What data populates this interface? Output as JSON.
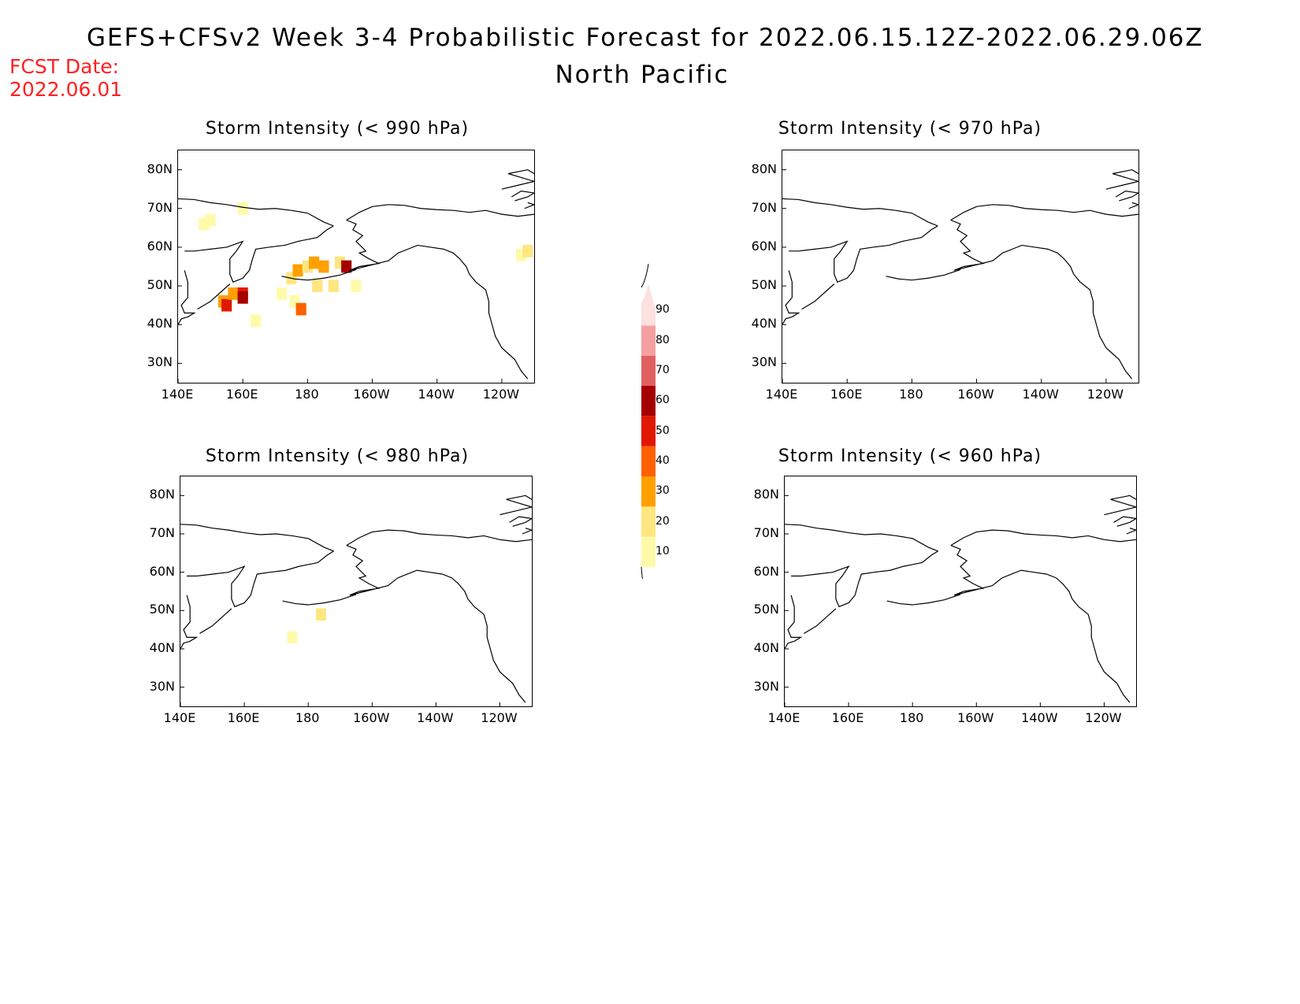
{
  "header": {
    "title": "GEFS+CFSv2 Week 3-4 Probabilistic Forecast for 2022.06.15.12Z-2022.06.29.06Z",
    "subtitle": "North Pacific",
    "fcst_label": "FCST Date:",
    "fcst_date": "2022.06.01"
  },
  "panels": [
    {
      "title": "Storm Intensity (< 990 hPa)"
    },
    {
      "title": "Storm Intensity (< 970 hPa)"
    },
    {
      "title": "Storm Intensity (< 980 hPa)"
    },
    {
      "title": "Storm Intensity (< 960 hPa)"
    }
  ],
  "axes": {
    "lat_ticks": [
      "80N",
      "70N",
      "60N",
      "50N",
      "40N",
      "30N"
    ],
    "lon_ticks": [
      "140E",
      "160E",
      "180",
      "160W",
      "140W",
      "120W"
    ],
    "lat_range": [
      25,
      85
    ],
    "lon_range": [
      140,
      250
    ]
  },
  "colorbar": {
    "levels": [
      "10",
      "20",
      "30",
      "40",
      "50",
      "60",
      "70",
      "80",
      "90"
    ],
    "colors": [
      "#fffaaa",
      "#ffe680",
      "#ffa000",
      "#ff6000",
      "#e11800",
      "#a50000",
      "#e06060",
      "#f4a0a0",
      "#fde0e0"
    ]
  },
  "chart_data": {
    "type": "heatmap",
    "units": "percent",
    "panel_990": [
      {
        "lon": 148,
        "lat": 66,
        "value": 15
      },
      {
        "lon": 150,
        "lat": 67,
        "value": 15
      },
      {
        "lon": 160,
        "lat": 70,
        "value": 12
      },
      {
        "lon": 154,
        "lat": 46,
        "value": 35
      },
      {
        "lon": 155,
        "lat": 45,
        "value": 55
      },
      {
        "lon": 157,
        "lat": 48,
        "value": 30
      },
      {
        "lon": 160,
        "lat": 48,
        "value": 50
      },
      {
        "lon": 160,
        "lat": 47,
        "value": 60
      },
      {
        "lon": 164,
        "lat": 41,
        "value": 15
      },
      {
        "lon": 172,
        "lat": 48,
        "value": 15
      },
      {
        "lon": 175,
        "lat": 52,
        "value": 25
      },
      {
        "lon": 177,
        "lat": 54,
        "value": 35
      },
      {
        "lon": 180,
        "lat": 55,
        "value": 25
      },
      {
        "lon": 182,
        "lat": 56,
        "value": 30
      },
      {
        "lon": 185,
        "lat": 55,
        "value": 35
      },
      {
        "lon": 183,
        "lat": 50,
        "value": 20
      },
      {
        "lon": 176,
        "lat": 46,
        "value": 15
      },
      {
        "lon": 178,
        "lat": 44,
        "value": 40
      },
      {
        "lon": 188,
        "lat": 50,
        "value": 20
      },
      {
        "lon": 190,
        "lat": 56,
        "value": 20
      },
      {
        "lon": 192,
        "lat": 55,
        "value": 60
      },
      {
        "lon": 195,
        "lat": 50,
        "value": 15
      },
      {
        "lon": 246,
        "lat": 58,
        "value": 15
      },
      {
        "lon": 248,
        "lat": 59,
        "value": 20
      }
    ],
    "panel_980": [
      {
        "lon": 184,
        "lat": 49,
        "value": 20
      },
      {
        "lon": 175,
        "lat": 43,
        "value": 15
      }
    ],
    "panel_970": [],
    "panel_960": []
  }
}
